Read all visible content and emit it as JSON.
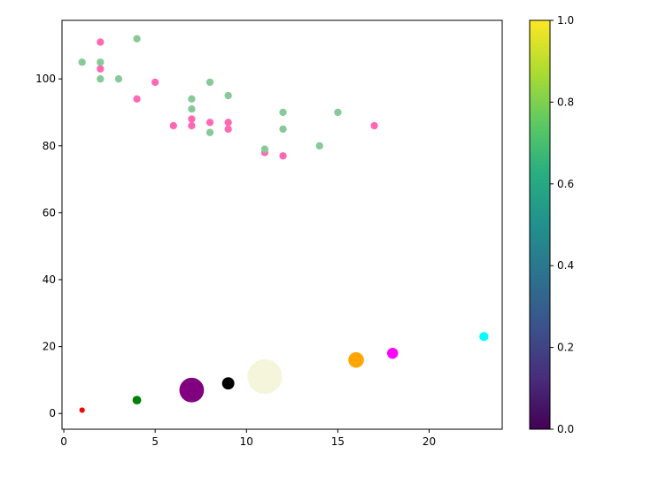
{
  "chart_data": {
    "type": "scatter",
    "title": "",
    "xlabel": "",
    "ylabel": "",
    "xlim": [
      -0.1,
      24.0
    ],
    "ylim": [
      -4.7,
      117.5
    ],
    "xticks": [
      0,
      5,
      10,
      15,
      20
    ],
    "yticks": [
      0,
      20,
      40,
      60,
      80,
      100
    ],
    "grid": false,
    "series": [
      {
        "color": "#ff69b4",
        "points": [
          {
            "x": 2,
            "y": 111
          },
          {
            "x": 2,
            "y": 103
          },
          {
            "x": 4,
            "y": 94
          },
          {
            "x": 5,
            "y": 99
          },
          {
            "x": 6,
            "y": 86
          },
          {
            "x": 7,
            "y": 88
          },
          {
            "x": 7,
            "y": 86
          },
          {
            "x": 8,
            "y": 87
          },
          {
            "x": 9,
            "y": 87
          },
          {
            "x": 9,
            "y": 85
          },
          {
            "x": 11,
            "y": 78
          },
          {
            "x": 12,
            "y": 77
          },
          {
            "x": 17,
            "y": 86
          }
        ]
      },
      {
        "color": "#88c999",
        "points": [
          {
            "x": 1,
            "y": 105
          },
          {
            "x": 2,
            "y": 105
          },
          {
            "x": 2,
            "y": 100
          },
          {
            "x": 3,
            "y": 100
          },
          {
            "x": 4,
            "y": 112
          },
          {
            "x": 7,
            "y": 94
          },
          {
            "x": 7,
            "y": 91
          },
          {
            "x": 8,
            "y": 99
          },
          {
            "x": 8,
            "y": 84
          },
          {
            "x": 9,
            "y": 95
          },
          {
            "x": 11,
            "y": 79
          },
          {
            "x": 12,
            "y": 90
          },
          {
            "x": 12,
            "y": 85
          },
          {
            "x": 14,
            "y": 80
          },
          {
            "x": 15,
            "y": 90
          }
        ]
      },
      {
        "color": "varied",
        "points": [
          {
            "x": 1,
            "y": 1,
            "color": "red",
            "size": 20
          },
          {
            "x": 4,
            "y": 4,
            "color": "green",
            "size": 50
          },
          {
            "x": 7,
            "y": 7,
            "color": "purple",
            "size": 400
          },
          {
            "x": 9,
            "y": 9,
            "color": "black",
            "size": 100
          },
          {
            "x": 11,
            "y": 11,
            "color": "beige",
            "size": 800
          },
          {
            "x": 16,
            "y": 16,
            "color": "orange",
            "size": 160
          },
          {
            "x": 18,
            "y": 18,
            "color": "magenta",
            "size": 80
          },
          {
            "x": 23,
            "y": 23,
            "color": "cyan",
            "size": 55
          }
        ]
      }
    ],
    "colorbar": {
      "colormap": "viridis",
      "range": [
        0.0,
        1.0
      ],
      "ticks": [
        "0.0",
        "0.2",
        "0.4",
        "0.6",
        "0.8",
        "1.0"
      ]
    }
  }
}
